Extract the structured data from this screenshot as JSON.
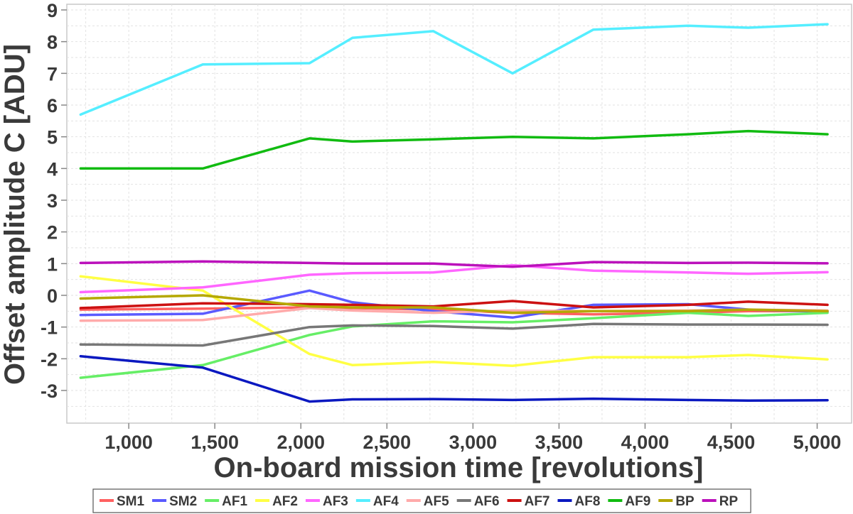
{
  "chart_data": {
    "type": "line",
    "xlabel": "On-board mission time [revolutions]",
    "ylabel": "Offset amplitude C [ADU]",
    "xlim": [
      640,
      5200
    ],
    "ylim": [
      -4,
      9
    ],
    "xticks": [
      1000,
      1500,
      2000,
      2500,
      3000,
      3500,
      4000,
      4500,
      5000
    ],
    "xtick_labels": [
      "1,000",
      "1,500",
      "2,000",
      "2,500",
      "3,000",
      "3,500",
      "4,000",
      "4,500",
      "5,000"
    ],
    "yticks": [
      -3,
      -2,
      -1,
      0,
      1,
      2,
      3,
      4,
      5,
      6,
      7,
      8,
      9
    ],
    "ytick_labels": [
      "-3",
      "-2",
      "-1",
      "0",
      "1",
      "2",
      "3",
      "4",
      "5",
      "6",
      "7",
      "8",
      "9"
    ],
    "grid": true,
    "legend_position": "bottom",
    "x": [
      720,
      1430,
      2050,
      2300,
      2770,
      3230,
      3700,
      4250,
      4600,
      5060
    ],
    "series": [
      {
        "name": "SM1",
        "color": "#ff6060",
        "values": [
          -0.45,
          -0.42,
          -0.38,
          -0.4,
          -0.45,
          -0.55,
          -0.6,
          -0.55,
          -0.5,
          -0.5
        ]
      },
      {
        "name": "SM2",
        "color": "#5a5aff",
        "values": [
          -0.62,
          -0.58,
          0.15,
          -0.22,
          -0.5,
          -0.7,
          -0.3,
          -0.28,
          -0.45,
          -0.52
        ]
      },
      {
        "name": "AF1",
        "color": "#66ee66",
        "values": [
          -2.6,
          -2.2,
          -1.25,
          -0.98,
          -0.82,
          -0.85,
          -0.72,
          -0.55,
          -0.65,
          -0.55
        ]
      },
      {
        "name": "AF2",
        "color": "#ffff44",
        "values": [
          0.6,
          0.15,
          -1.85,
          -2.2,
          -2.1,
          -2.22,
          -1.95,
          -1.95,
          -1.88,
          -2.02
        ]
      },
      {
        "name": "AF3",
        "color": "#ff66ff",
        "values": [
          0.1,
          0.25,
          0.65,
          0.7,
          0.72,
          0.95,
          0.78,
          0.72,
          0.68,
          0.73
        ]
      },
      {
        "name": "AF4",
        "color": "#55eeff",
        "values": [
          5.7,
          7.28,
          7.32,
          8.12,
          8.33,
          7.0,
          8.38,
          8.5,
          8.44,
          8.55
        ]
      },
      {
        "name": "AF5",
        "color": "#ffaaaa",
        "values": [
          -0.8,
          -0.78,
          -0.4,
          -0.48,
          -0.55,
          -0.48,
          -0.5,
          -0.48,
          -0.45,
          -0.48
        ]
      },
      {
        "name": "AF6",
        "color": "#777777",
        "values": [
          -1.55,
          -1.58,
          -1.0,
          -0.95,
          -0.97,
          -1.05,
          -0.9,
          -0.92,
          -0.92,
          -0.93
        ]
      },
      {
        "name": "AF7",
        "color": "#cc1111",
        "values": [
          -0.4,
          -0.25,
          -0.28,
          -0.3,
          -0.35,
          -0.18,
          -0.38,
          -0.3,
          -0.2,
          -0.3
        ]
      },
      {
        "name": "AF8",
        "color": "#0a18c0",
        "values": [
          -1.92,
          -2.28,
          -3.35,
          -3.28,
          -3.27,
          -3.3,
          -3.26,
          -3.3,
          -3.32,
          -3.31
        ]
      },
      {
        "name": "AF9",
        "color": "#11bb11",
        "values": [
          4.0,
          4.0,
          4.95,
          4.85,
          4.92,
          5.0,
          4.95,
          5.08,
          5.18,
          5.08
        ]
      },
      {
        "name": "BP",
        "color": "#b5a800",
        "values": [
          -0.1,
          0.0,
          -0.35,
          -0.38,
          -0.38,
          -0.55,
          -0.5,
          -0.5,
          -0.45,
          -0.5
        ]
      },
      {
        "name": "RP",
        "color": "#bb11bb",
        "values": [
          1.02,
          1.07,
          1.02,
          1.0,
          1.0,
          0.9,
          1.05,
          1.02,
          1.03,
          1.01
        ]
      }
    ]
  }
}
